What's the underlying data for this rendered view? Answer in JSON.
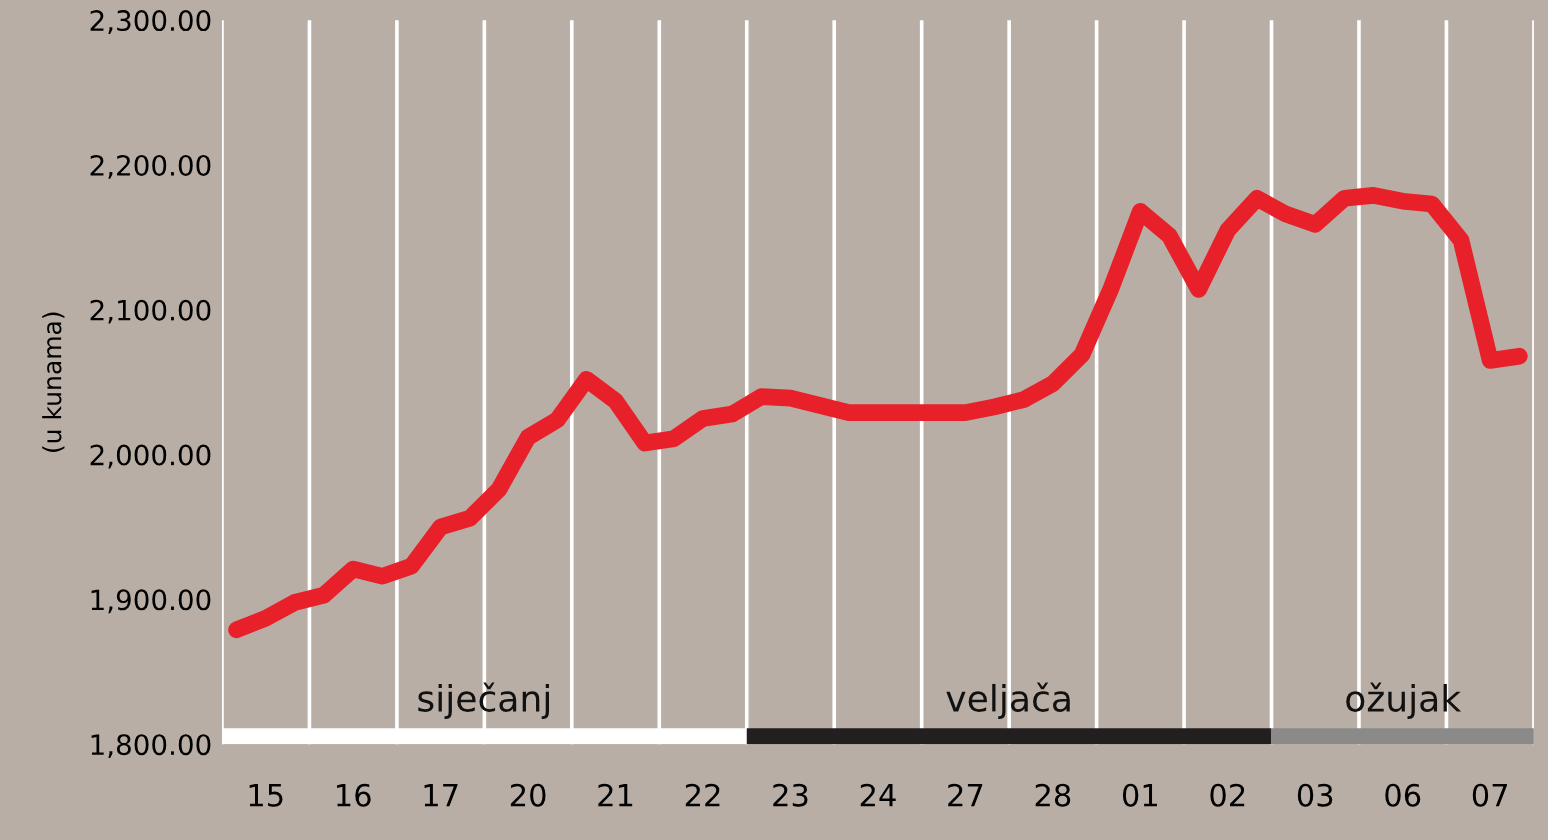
{
  "chart_data": {
    "type": "line",
    "ylabel": "(u kunama)",
    "categories": [
      null,
      "15",
      null,
      null,
      "16",
      null,
      null,
      "17",
      null,
      null,
      "20",
      null,
      null,
      "21",
      null,
      null,
      "22",
      null,
      null,
      "23",
      null,
      null,
      "24",
      null,
      null,
      "27",
      null,
      null,
      "28",
      null,
      null,
      "01",
      null,
      null,
      "02",
      null,
      null,
      "03",
      null,
      null,
      "06",
      null,
      null,
      "07",
      null
    ],
    "series": [
      {
        "color": "#e8202a",
        "values": [
          1879,
          1887,
          1898,
          1903,
          1921,
          1916,
          1923,
          1950,
          1956,
          1976,
          2012,
          2024,
          2052,
          2037,
          2008,
          2011,
          2025,
          2028,
          2040,
          2039,
          2034,
          2029,
          2029,
          2029,
          2029,
          2029,
          2033,
          2038,
          2049,
          2069,
          2115,
          2168,
          2151,
          2114,
          2155,
          2177,
          2166,
          2159,
          2177,
          2179,
          2175,
          2173,
          2148,
          2065,
          2068
        ]
      }
    ],
    "ylim": [
      1800,
      2300
    ],
    "yticks": [
      {
        "value": 1800,
        "label": "1,800.00"
      },
      {
        "value": 1900,
        "label": "1,900.00"
      },
      {
        "value": 2000,
        "label": "2,000.00"
      },
      {
        "value": 2100,
        "label": "2,100.00"
      },
      {
        "value": 2200,
        "label": "2,200.00"
      },
      {
        "value": 2300,
        "label": "2,300.00"
      }
    ],
    "grid": "x",
    "marker": "none",
    "line_style": "solid",
    "annotations": [
      "siječanj",
      "veljača",
      "ožujak"
    ]
  }
}
